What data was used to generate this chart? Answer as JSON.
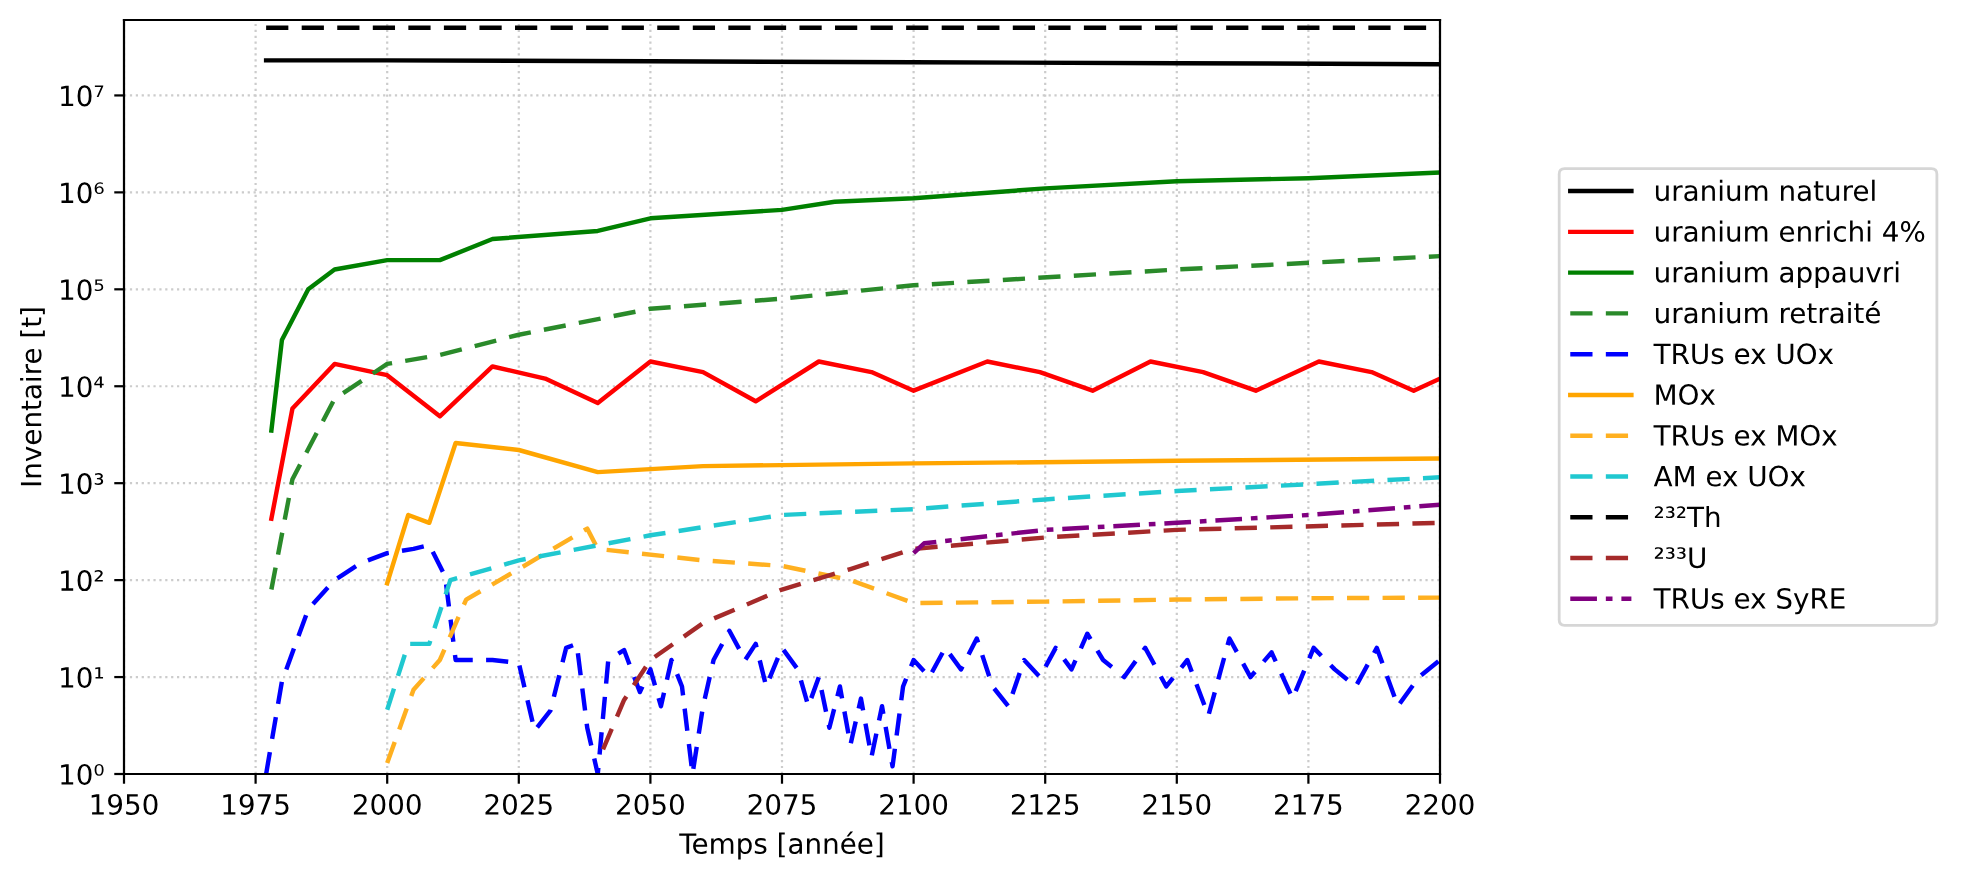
{
  "chart_data": {
    "type": "line",
    "xlabel": "Temps [année]",
    "ylabel": "Inventaire [t]",
    "log": "y",
    "xlim": [
      1950,
      2200
    ],
    "xticks": [
      1950,
      1975,
      2000,
      2025,
      2050,
      2075,
      2100,
      2125,
      2150,
      2175,
      2200
    ],
    "ylim": [
      1,
      60000000
    ],
    "yticks": [
      {
        "value": 1,
        "label": "10⁰"
      },
      {
        "value": 10,
        "label": "10¹"
      },
      {
        "value": 100,
        "label": "10²"
      },
      {
        "value": 1000,
        "label": "10³"
      },
      {
        "value": 10000,
        "label": "10⁴"
      },
      {
        "value": 100000,
        "label": "10⁵"
      },
      {
        "value": 1000000,
        "label": "10⁶"
      },
      {
        "value": 10000000,
        "label": "10⁷"
      }
    ],
    "grid": true,
    "legend": "right",
    "marker": "none",
    "series": [
      {
        "name": "uranium naturel",
        "color": "#000000",
        "line_style": "solid",
        "x": [
          1977,
          2000,
          2050,
          2100,
          2150,
          2200
        ],
        "values": [
          23000000,
          23000000,
          22500000,
          22000000,
          21500000,
          21000000
        ]
      },
      {
        "name": "uranium enrichi 4%",
        "color": "#ff0000",
        "line_style": "solid",
        "x": [
          1978,
          1982,
          1990,
          2000,
          2010,
          2020,
          2030,
          2040,
          2050,
          2060,
          2070,
          2082,
          2092,
          2100,
          2114,
          2124,
          2134,
          2145,
          2155,
          2165,
          2177,
          2187,
          2195,
          2200
        ],
        "values": [
          430,
          5900,
          17000,
          13000,
          4900,
          16000,
          12000,
          6700,
          18000,
          14000,
          7000,
          18000,
          14000,
          9000,
          18000,
          14000,
          9000,
          18000,
          14000,
          9000,
          18000,
          14000,
          9000,
          12000
        ]
      },
      {
        "name": "uranium appauvri",
        "color": "#008000",
        "line_style": "solid",
        "x": [
          1978,
          1980,
          1985,
          1990,
          2000,
          2010,
          2020,
          2040,
          2050,
          2075,
          2085,
          2100,
          2125,
          2150,
          2175,
          2200
        ],
        "values": [
          3500,
          30000,
          100000,
          160000,
          200000,
          200000,
          330000,
          400000,
          540000,
          660000,
          800000,
          870000,
          1100000,
          1300000,
          1400000,
          1600000
        ]
      },
      {
        "name": "uranium retraité",
        "color": "#2a8a2a",
        "line_style": "dashed",
        "x": [
          1978,
          1982,
          1990,
          2000,
          2010,
          2025,
          2050,
          2075,
          2100,
          2150,
          2200
        ],
        "values": [
          80,
          1100,
          7400,
          17000,
          21000,
          34000,
          63000,
          80000,
          110000,
          160000,
          220000
        ]
      },
      {
        "name": "TRUs ex UOx",
        "color": "#0000ff",
        "line_style": "dashed",
        "x": [
          1977,
          1980,
          1985,
          1990,
          1995,
          2000,
          2005,
          2008,
          2011,
          2013,
          2020,
          2025,
          2028,
          2031,
          2034,
          2036,
          2038,
          2040,
          2042,
          2045,
          2048,
          2050,
          2052,
          2054,
          2056,
          2058,
          2060,
          2062,
          2065,
          2068,
          2070,
          2072,
          2075,
          2078,
          2080,
          2082,
          2084,
          2086,
          2088,
          2090,
          2092,
          2094,
          2096,
          2098,
          2100,
          2103,
          2106,
          2109,
          2112,
          2115,
          2118,
          2121,
          2124,
          2127,
          2130,
          2133,
          2136,
          2140,
          2144,
          2148,
          2152,
          2156,
          2160,
          2164,
          2168,
          2172,
          2176,
          2180,
          2184,
          2188,
          2192,
          2196,
          2200
        ],
        "values": [
          1,
          9,
          50,
          100,
          150,
          190,
          210,
          230,
          110,
          15,
          15,
          14,
          2.8,
          4.5,
          20,
          22,
          3,
          1,
          15,
          19,
          7,
          12,
          5,
          15,
          8,
          1,
          5,
          15,
          30,
          15,
          22,
          8,
          20,
          12,
          5,
          10,
          3,
          8,
          2,
          6,
          1.5,
          5,
          1.2,
          8,
          15,
          10,
          20,
          12,
          25,
          8,
          5,
          15,
          10,
          20,
          12,
          28,
          15,
          10,
          20,
          8,
          15,
          4,
          25,
          10,
          18,
          6,
          20,
          12,
          8,
          20,
          5,
          10,
          15
        ]
      },
      {
        "name": "MOx",
        "color": "#ffa500",
        "line_style": "solid",
        "x": [
          2000,
          2004,
          2008,
          2013,
          2025,
          2040,
          2060,
          2100,
          2150,
          2200
        ],
        "values": [
          93,
          470,
          390,
          2600,
          2200,
          1300,
          1500,
          1600,
          1700,
          1800
        ]
      },
      {
        "name": "TRUs ex MOx",
        "color": "#ffb020",
        "line_style": "dashed",
        "x": [
          2000,
          2005,
          2010,
          2015,
          2025,
          2038,
          2040,
          2060,
          2075,
          2088,
          2100,
          2125,
          2150,
          2175,
          2200
        ],
        "values": [
          1.3,
          7.4,
          15,
          63,
          130,
          340,
          210,
          160,
          140,
          100,
          58,
          60,
          63,
          65,
          66
        ]
      },
      {
        "name": "AM ex UOx",
        "color": "#20c8d0",
        "line_style": "dashed",
        "x": [
          2000,
          2004,
          2008,
          2012,
          2025,
          2050,
          2075,
          2100,
          2125,
          2150,
          2200
        ],
        "values": [
          4.6,
          22,
          22,
          100,
          160,
          290,
          470,
          540,
          680,
          830,
          1150
        ]
      },
      {
        "name": "²³²Th",
        "color": "#000000",
        "line_style": "dashed",
        "x": [
          1977,
          2000,
          2100,
          2200
        ],
        "values": [
          50000000,
          50000000,
          50000000,
          50000000
        ]
      },
      {
        "name": "²³³U",
        "color": "#a52a2a",
        "line_style": "dashed",
        "x": [
          2041,
          2045,
          2050,
          2060,
          2075,
          2088,
          2100,
          2125,
          2150,
          2200
        ],
        "values": [
          1.8,
          5.8,
          15,
          36,
          80,
          130,
          210,
          275,
          330,
          390
        ]
      },
      {
        "name": "TRUs ex SyRE",
        "color": "#800080",
        "line_style": "dashdot",
        "x": [
          2100,
          2102,
          2125,
          2150,
          2175,
          2200
        ],
        "values": [
          190,
          240,
          330,
          390,
          470,
          600
        ]
      }
    ]
  }
}
